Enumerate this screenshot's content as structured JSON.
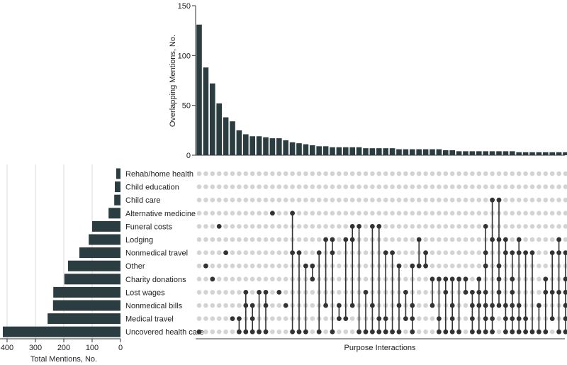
{
  "chart_data": [
    {
      "type": "bar",
      "name": "intersection-size",
      "ylabel": "Overlapping Mentions, No.",
      "xlabel": "Purpose Interactions",
      "ylim": [
        0,
        150
      ],
      "yticks": [
        0,
        50,
        100,
        150
      ],
      "values": [
        131,
        88,
        72,
        52,
        38,
        34,
        25,
        21,
        19,
        19,
        18,
        17,
        17,
        15,
        13,
        12,
        11,
        10,
        9,
        9,
        8,
        8,
        8,
        8,
        8,
        7,
        7,
        7,
        7,
        7,
        6,
        6,
        6,
        6,
        6,
        6,
        6,
        5,
        5,
        4,
        4,
        4,
        4,
        4,
        4,
        4,
        4,
        4,
        3,
        3,
        3,
        3,
        3,
        3,
        3,
        3
      ],
      "color": "#2b3d41"
    },
    {
      "type": "bar",
      "name": "set-size",
      "orientation": "horizontal",
      "xlabel": "Total Mentions, No.",
      "xlim": [
        0,
        420
      ],
      "xticks": [
        400,
        300,
        200,
        100,
        0
      ],
      "categories": [
        "Rehab/home health",
        "Child education",
        "Child care",
        "Alternative medicine",
        "Funeral costs",
        "Lodging",
        "Nonmedical travel",
        "Other",
        "Charity donations",
        "Lost wages",
        "Nonmedical bills",
        "Medical travel",
        "Uncovered health care"
      ],
      "values": [
        15,
        20,
        22,
        42,
        100,
        112,
        145,
        185,
        198,
        237,
        238,
        257,
        415
      ],
      "color": "#2b3d41"
    },
    {
      "type": "matrix",
      "name": "combination-matrix",
      "rows": [
        "Rehab/home health",
        "Child education",
        "Child care",
        "Alternative medicine",
        "Funeral costs",
        "Lodging",
        "Nonmedical travel",
        "Other",
        "Charity donations",
        "Lost wages",
        "Nonmedical bills",
        "Medical travel",
        "Uncovered health care"
      ],
      "combinations": [
        [
          12
        ],
        [
          7
        ],
        [
          8
        ],
        [
          4
        ],
        [
          6
        ],
        [
          11
        ],
        [
          11,
          12
        ],
        [
          9,
          10,
          12
        ],
        [
          10,
          11,
          12
        ],
        [
          9,
          12
        ],
        [
          9,
          10,
          12
        ],
        [
          3
        ],
        [
          9
        ],
        [
          10
        ],
        [
          3,
          6,
          12
        ],
        [
          6,
          12
        ],
        [
          7,
          12
        ],
        [
          7,
          8
        ],
        [
          6,
          12
        ],
        [
          5,
          10
        ],
        [
          5,
          6,
          12
        ],
        [
          10,
          11
        ],
        [
          5,
          11
        ],
        [
          4,
          5,
          10
        ],
        [
          4,
          12
        ],
        [
          9,
          12
        ],
        [
          4,
          10,
          12
        ],
        [
          4,
          11,
          12
        ],
        [
          6,
          11,
          12
        ],
        [
          6,
          12
        ],
        [
          7,
          10,
          12
        ],
        [
          9,
          11
        ],
        [
          7,
          10,
          11,
          12
        ],
        [
          5,
          7
        ],
        [
          6,
          7
        ],
        [
          8,
          10
        ],
        [
          8,
          11,
          12
        ],
        [
          8,
          9,
          12
        ],
        [
          8,
          10,
          11,
          12
        ],
        [
          8,
          12
        ],
        [
          8,
          9
        ],
        [
          9,
          10,
          11,
          12
        ],
        [
          8,
          9,
          10,
          12
        ],
        [
          4,
          6,
          7,
          9,
          10,
          11,
          12
        ],
        [
          2,
          5,
          10,
          11,
          12
        ],
        [
          2,
          5,
          7,
          8,
          9,
          10
        ],
        [
          5,
          6,
          10,
          11,
          12
        ],
        [
          6,
          8,
          9,
          10,
          11,
          12
        ],
        [
          5,
          6,
          10,
          11,
          12
        ],
        [
          6,
          11,
          12
        ],
        [
          6,
          12
        ],
        [
          10,
          12
        ],
        [
          8,
          9,
          12
        ],
        [
          6,
          9,
          11
        ],
        [
          5,
          6,
          9,
          12
        ],
        [
          6,
          8,
          9,
          10,
          11,
          12
        ]
      ],
      "active_color": "#333333",
      "inactive_color": "#d3d3d3"
    }
  ]
}
